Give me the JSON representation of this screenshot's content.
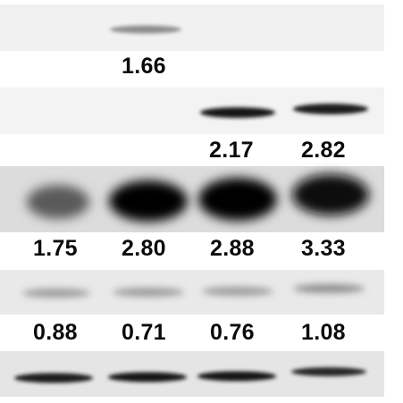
{
  "blot": {
    "lane_count": 4,
    "strips": [
      {
        "name": "strip-1",
        "lanes_with_band": [
          2
        ],
        "band_intensity": [
          0,
          0.35,
          0,
          0
        ],
        "background": "#f1f1f1"
      },
      {
        "name": "strip-2",
        "lanes_with_band": [
          3,
          4
        ],
        "band_intensity": [
          0,
          0,
          0.92,
          0.9
        ],
        "background": "#f4f4f4"
      },
      {
        "name": "strip-3",
        "lanes_with_band": [
          1,
          2,
          3,
          4
        ],
        "band_intensity": [
          0.55,
          1.0,
          1.0,
          0.98
        ],
        "background": "#dedede"
      },
      {
        "name": "strip-4",
        "lanes_with_band": [
          1,
          2,
          3,
          4
        ],
        "band_intensity": [
          0.35,
          0.35,
          0.35,
          0.4
        ],
        "background": "#e8e8e8"
      },
      {
        "name": "strip-5",
        "lanes_with_band": [
          1,
          2,
          3,
          4
        ],
        "band_intensity": [
          0.9,
          0.92,
          0.92,
          0.85
        ],
        "background": "#e6e6e6"
      }
    ],
    "quantification": {
      "row1": [
        "1.66"
      ],
      "row2": [
        "2.17",
        "2.82"
      ],
      "row3": [
        "1.75",
        "2.80",
        "2.88",
        "3.33"
      ],
      "row4": [
        "0.88",
        "0.71",
        "0.76",
        "1.08"
      ]
    }
  }
}
